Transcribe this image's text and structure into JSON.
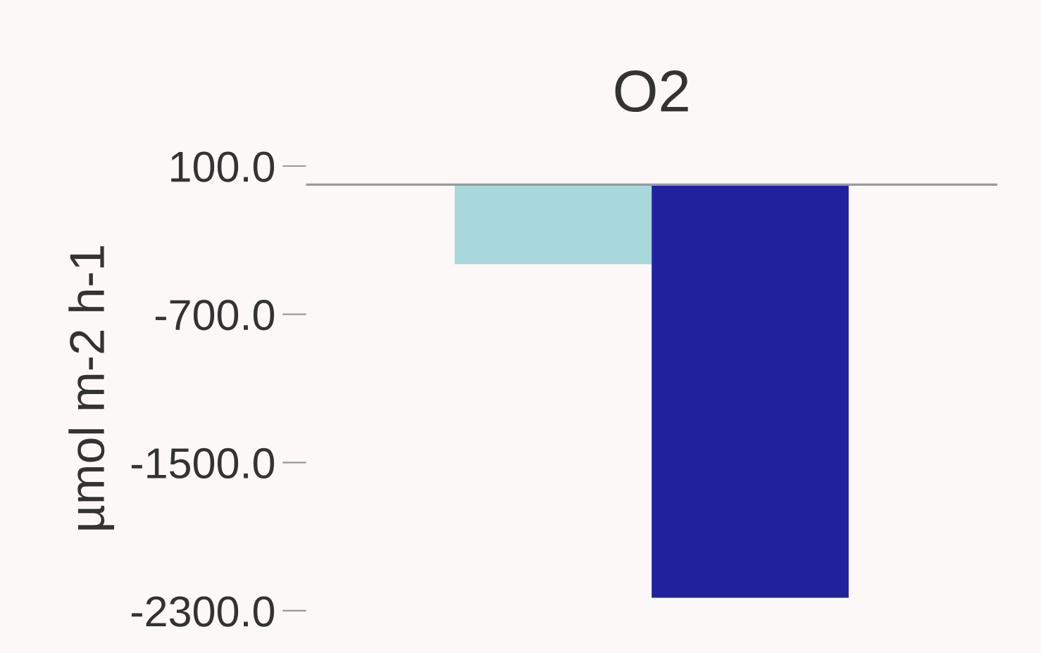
{
  "chart_data": {
    "type": "bar",
    "title": "O2",
    "ylabel": "µmol m-2 h-1",
    "categories": [
      null
    ],
    "series": [
      {
        "color": "#a8d8dc",
        "values": [
          -430
        ]
      },
      {
        "color": "#1f229c",
        "values": [
          -2230
        ]
      }
    ],
    "ylim": [
      -2300,
      100
    ],
    "yticks": [
      {
        "value": 100,
        "label": "100.0"
      },
      {
        "value": -700,
        "label": "-700.0"
      },
      {
        "value": -1500,
        "label": "-1500.0"
      },
      {
        "value": -2300,
        "label": "-2300.0"
      }
    ],
    "grid": false,
    "legend": false
  }
}
